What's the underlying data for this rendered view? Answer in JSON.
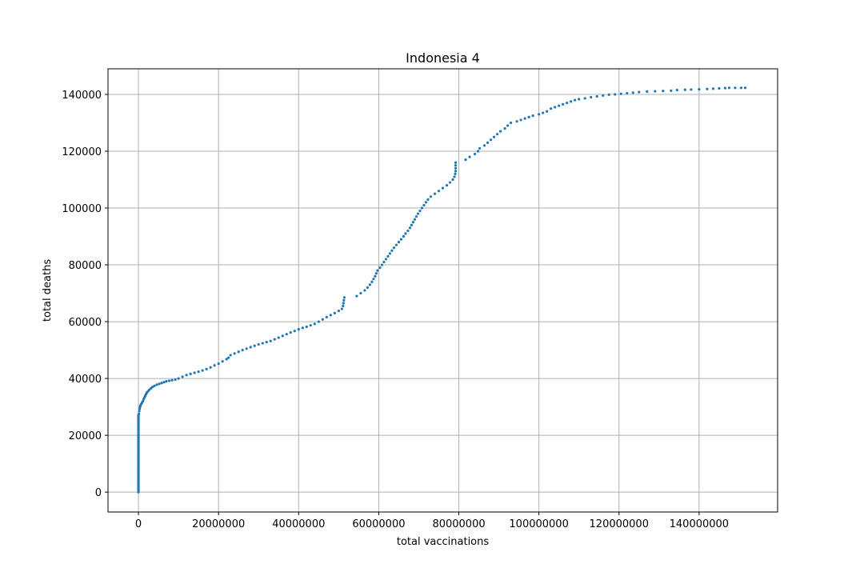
{
  "chart_data": {
    "type": "scatter",
    "title": "Indonesia 4",
    "xlabel": "total vaccinations",
    "ylabel": "total deaths",
    "xlim": [
      -7600000,
      159600000
    ],
    "ylim": [
      -7000,
      149000
    ],
    "xticks": [
      0,
      20000000,
      40000000,
      60000000,
      80000000,
      100000000,
      120000000,
      140000000
    ],
    "xtick_labels": [
      "0",
      "20000000",
      "40000000",
      "60000000",
      "80000000",
      "100000000",
      "120000000",
      "140000000"
    ],
    "yticks": [
      0,
      20000,
      40000,
      60000,
      80000,
      100000,
      120000,
      140000
    ],
    "ytick_labels": [
      "0",
      "20000",
      "40000",
      "60000",
      "80000",
      "100000",
      "120000",
      "140000"
    ],
    "grid": true,
    "marker_color": "#1f77b4",
    "points": [
      [
        0,
        0
      ],
      [
        0,
        500
      ],
      [
        0,
        1000
      ],
      [
        0,
        1500
      ],
      [
        0,
        2000
      ],
      [
        0,
        2500
      ],
      [
        0,
        3000
      ],
      [
        0,
        3500
      ],
      [
        0,
        4000
      ],
      [
        0,
        4500
      ],
      [
        0,
        5000
      ],
      [
        0,
        5500
      ],
      [
        0,
        6000
      ],
      [
        0,
        6500
      ],
      [
        0,
        7000
      ],
      [
        0,
        7500
      ],
      [
        0,
        8000
      ],
      [
        0,
        8500
      ],
      [
        0,
        9000
      ],
      [
        0,
        9500
      ],
      [
        0,
        10000
      ],
      [
        0,
        10500
      ],
      [
        0,
        11000
      ],
      [
        0,
        11500
      ],
      [
        0,
        12000
      ],
      [
        0,
        12500
      ],
      [
        0,
        13000
      ],
      [
        0,
        13500
      ],
      [
        0,
        14000
      ],
      [
        0,
        14500
      ],
      [
        0,
        15000
      ],
      [
        0,
        15500
      ],
      [
        0,
        16000
      ],
      [
        0,
        16500
      ],
      [
        0,
        17000
      ],
      [
        0,
        17500
      ],
      [
        0,
        18000
      ],
      [
        0,
        18500
      ],
      [
        0,
        19000
      ],
      [
        0,
        19500
      ],
      [
        0,
        20000
      ],
      [
        0,
        20500
      ],
      [
        0,
        21000
      ],
      [
        0,
        21500
      ],
      [
        0,
        22000
      ],
      [
        0,
        22500
      ],
      [
        0,
        23000
      ],
      [
        0,
        23500
      ],
      [
        0,
        24000
      ],
      [
        0,
        24500
      ],
      [
        0,
        25000
      ],
      [
        0,
        25500
      ],
      [
        0,
        26000
      ],
      [
        0,
        26500
      ],
      [
        0,
        27000
      ],
      [
        100000,
        27500
      ],
      [
        200000,
        28500
      ],
      [
        300000,
        29300
      ],
      [
        400000,
        30000
      ],
      [
        500000,
        30500
      ],
      [
        700000,
        31000
      ],
      [
        900000,
        31500
      ],
      [
        1100000,
        32000
      ],
      [
        1300000,
        32700
      ],
      [
        1500000,
        33300
      ],
      [
        1700000,
        33900
      ],
      [
        1900000,
        34500
      ],
      [
        2100000,
        35000
      ],
      [
        2400000,
        35500
      ],
      [
        2700000,
        36000
      ],
      [
        3100000,
        36500
      ],
      [
        3500000,
        37000
      ],
      [
        4000000,
        37400
      ],
      [
        4600000,
        37800
      ],
      [
        5200000,
        38100
      ],
      [
        5800000,
        38400
      ],
      [
        6400000,
        38700
      ],
      [
        7000000,
        39000
      ],
      [
        7700000,
        39200
      ],
      [
        8400000,
        39400
      ],
      [
        9200000,
        39600
      ],
      [
        10000000,
        40000
      ],
      [
        11000000,
        40600
      ],
      [
        12000000,
        41200
      ],
      [
        13000000,
        41600
      ],
      [
        14000000,
        42000
      ],
      [
        15000000,
        42400
      ],
      [
        16000000,
        42800
      ],
      [
        17000000,
        43300
      ],
      [
        18000000,
        43900
      ],
      [
        19000000,
        44600
      ],
      [
        20000000,
        45200
      ],
      [
        21000000,
        46000
      ],
      [
        22000000,
        46800
      ],
      [
        22500000,
        47300
      ],
      [
        23000000,
        48200
      ],
      [
        24000000,
        48800
      ],
      [
        25000000,
        49400
      ],
      [
        26000000,
        50000
      ],
      [
        27000000,
        50500
      ],
      [
        28000000,
        51000
      ],
      [
        29000000,
        51500
      ],
      [
        30000000,
        52000
      ],
      [
        31000000,
        52400
      ],
      [
        32000000,
        52800
      ],
      [
        33000000,
        53200
      ],
      [
        34000000,
        53800
      ],
      [
        35000000,
        54400
      ],
      [
        36000000,
        55000
      ],
      [
        37000000,
        55600
      ],
      [
        38000000,
        56200
      ],
      [
        39000000,
        56700
      ],
      [
        40000000,
        57300
      ],
      [
        41000000,
        57800
      ],
      [
        42000000,
        58200
      ],
      [
        43000000,
        58700
      ],
      [
        44000000,
        59200
      ],
      [
        45000000,
        60000
      ],
      [
        46000000,
        60800
      ],
      [
        47000000,
        61600
      ],
      [
        48000000,
        62300
      ],
      [
        49000000,
        63000
      ],
      [
        50000000,
        63800
      ],
      [
        50800000,
        64500
      ],
      [
        51100000,
        65500
      ],
      [
        51200000,
        66500
      ],
      [
        51300000,
        67500
      ],
      [
        51400000,
        68500
      ],
      [
        54500000,
        69000
      ],
      [
        55500000,
        70000
      ],
      [
        56500000,
        71000
      ],
      [
        57200000,
        72000
      ],
      [
        57800000,
        73000
      ],
      [
        58300000,
        74000
      ],
      [
        58700000,
        75000
      ],
      [
        59100000,
        76000
      ],
      [
        59400000,
        77000
      ],
      [
        59700000,
        78000
      ],
      [
        60300000,
        79000
      ],
      [
        60800000,
        80000
      ],
      [
        61300000,
        81000
      ],
      [
        61800000,
        82000
      ],
      [
        62300000,
        83000
      ],
      [
        62800000,
        84000
      ],
      [
        63300000,
        85000
      ],
      [
        63800000,
        86000
      ],
      [
        64400000,
        87000
      ],
      [
        65000000,
        88000
      ],
      [
        65600000,
        89000
      ],
      [
        66200000,
        90000
      ],
      [
        66700000,
        91000
      ],
      [
        67300000,
        92000
      ],
      [
        67800000,
        93000
      ],
      [
        68200000,
        94000
      ],
      [
        68600000,
        95000
      ],
      [
        69000000,
        96000
      ],
      [
        69400000,
        97000
      ],
      [
        69800000,
        98000
      ],
      [
        70300000,
        99000
      ],
      [
        70800000,
        100000
      ],
      [
        71300000,
        101000
      ],
      [
        71800000,
        102000
      ],
      [
        72300000,
        103000
      ],
      [
        73000000,
        104000
      ],
      [
        74000000,
        105000
      ],
      [
        75000000,
        106000
      ],
      [
        76000000,
        107000
      ],
      [
        77000000,
        108000
      ],
      [
        77800000,
        109000
      ],
      [
        78500000,
        110000
      ],
      [
        78900000,
        111000
      ],
      [
        79100000,
        112000
      ],
      [
        79200000,
        113000
      ],
      [
        79200000,
        114000
      ],
      [
        79200000,
        115000
      ],
      [
        79200000,
        116000
      ],
      [
        81700000,
        117000
      ],
      [
        82700000,
        118000
      ],
      [
        84000000,
        119000
      ],
      [
        84800000,
        120000
      ],
      [
        85200000,
        121000
      ],
      [
        86400000,
        122000
      ],
      [
        87200000,
        123000
      ],
      [
        88000000,
        124000
      ],
      [
        88800000,
        125000
      ],
      [
        89600000,
        126000
      ],
      [
        90400000,
        127000
      ],
      [
        91500000,
        128000
      ],
      [
        92200000,
        129000
      ],
      [
        93000000,
        130000
      ],
      [
        94500000,
        130500
      ],
      [
        95500000,
        131000
      ],
      [
        96500000,
        131500
      ],
      [
        97500000,
        132000
      ],
      [
        98500000,
        132500
      ],
      [
        100000000,
        133000
      ],
      [
        101000000,
        133500
      ],
      [
        102000000,
        134000
      ],
      [
        103000000,
        135000
      ],
      [
        104000000,
        135500
      ],
      [
        105000000,
        136000
      ],
      [
        106000000,
        136500
      ],
      [
        107000000,
        137000
      ],
      [
        108000000,
        137500
      ],
      [
        109000000,
        138000
      ],
      [
        110000000,
        138300
      ],
      [
        111500000,
        138600
      ],
      [
        113000000,
        139000
      ],
      [
        114500000,
        139300
      ],
      [
        116000000,
        139600
      ],
      [
        117500000,
        139900
      ],
      [
        119000000,
        140000
      ],
      [
        120500000,
        140200
      ],
      [
        122000000,
        140400
      ],
      [
        123500000,
        140600
      ],
      [
        125000000,
        140800
      ],
      [
        127000000,
        141000
      ],
      [
        129000000,
        141100
      ],
      [
        131000000,
        141200
      ],
      [
        133000000,
        141300
      ],
      [
        134500000,
        141500
      ],
      [
        136500000,
        141600
      ],
      [
        138000000,
        141700
      ],
      [
        140000000,
        141800
      ],
      [
        142000000,
        141900
      ],
      [
        143500000,
        142000
      ],
      [
        145000000,
        142100
      ],
      [
        146500000,
        142200
      ],
      [
        147500000,
        142300
      ],
      [
        149000000,
        142300
      ],
      [
        150500000,
        142300
      ],
      [
        151500000,
        142300
      ]
    ]
  }
}
